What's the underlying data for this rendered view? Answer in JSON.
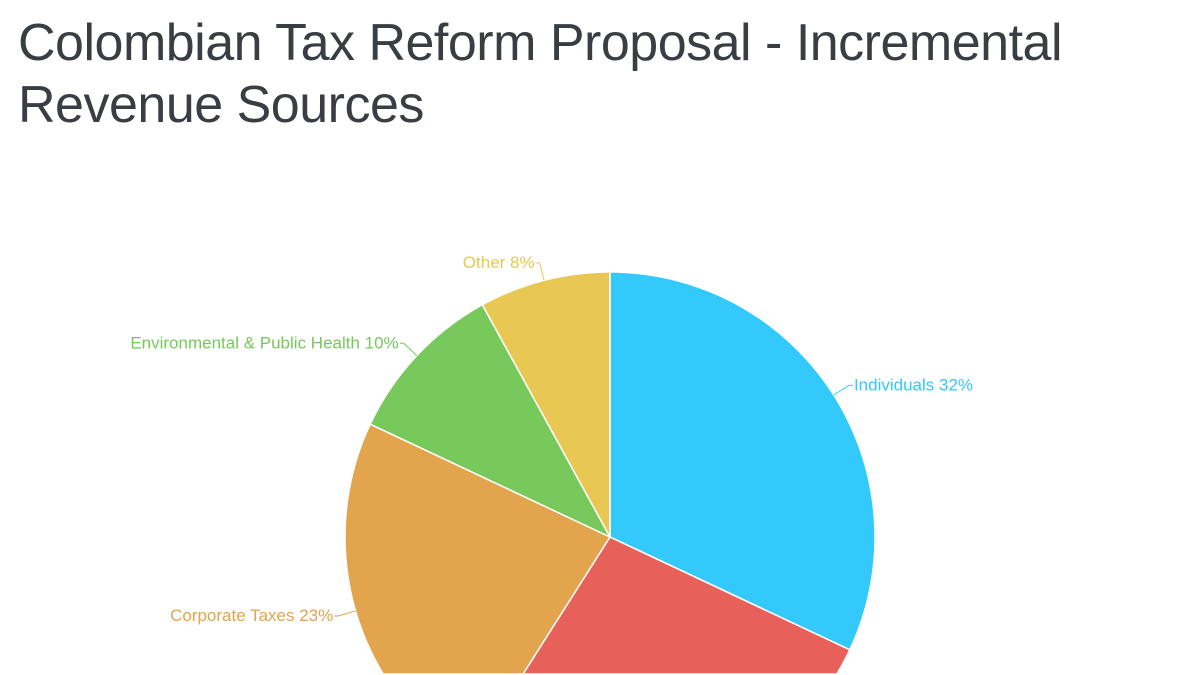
{
  "chart_data": {
    "type": "pie",
    "title": "Colombian Tax Reform Proposal - Incremental Revenue Sources",
    "start": "top",
    "direction": "clockwise",
    "slices": [
      {
        "label": "Individuals 32%",
        "value": 32,
        "color": "#33c9fa"
      },
      {
        "label": "",
        "value": 27,
        "color": "#e8605a"
      },
      {
        "label": "Corporate Taxes 23%",
        "value": 23,
        "color": "#e2a44c"
      },
      {
        "label": "Environmental & Public Health 10%",
        "value": 10,
        "color": "#76c95a"
      },
      {
        "label": "Other 8%",
        "value": 8,
        "color": "#e8c853"
      }
    ]
  }
}
